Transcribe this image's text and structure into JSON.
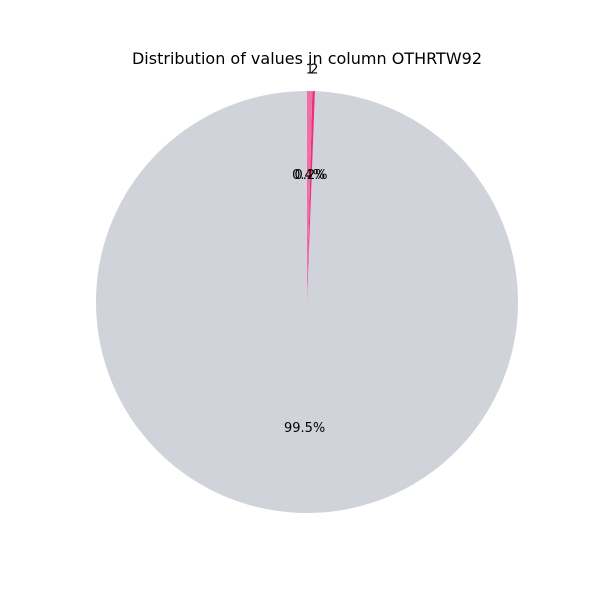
{
  "chart_data": {
    "type": "pie",
    "title": "Distribution of values in column OTHRTW92",
    "categories": [
      "",
      "2",
      "1"
    ],
    "values": [
      99.5,
      0.2,
      0.4
    ],
    "percent_labels": [
      "99.5%",
      "0.2%",
      "0.4%"
    ],
    "colors": [
      "#d1d3da",
      "#e8307c",
      "#f26ea6"
    ],
    "start_angle_deg": 90,
    "direction": "counterclockwise"
  }
}
